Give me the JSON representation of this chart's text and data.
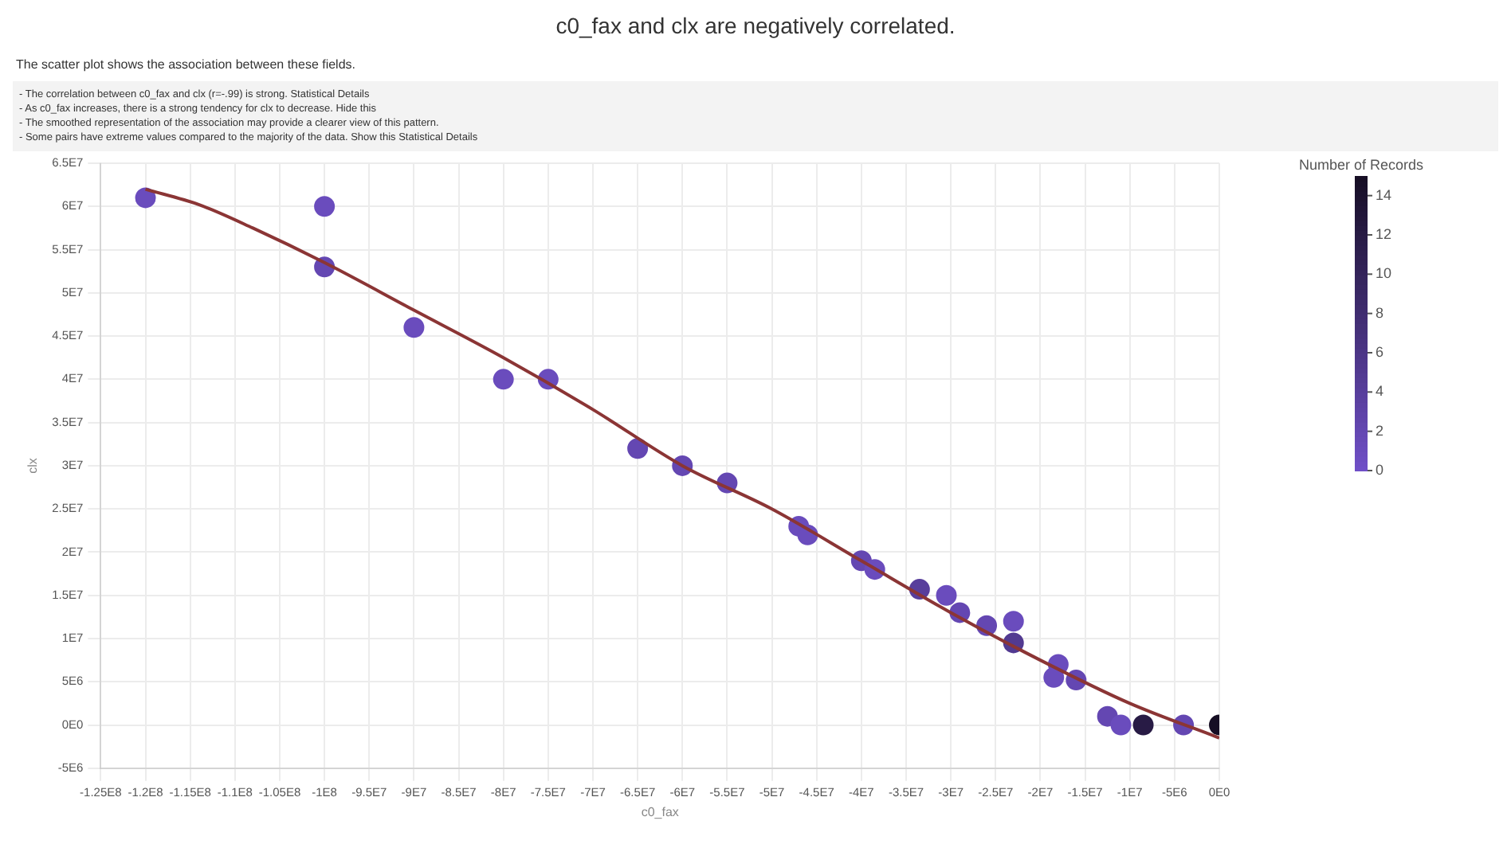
{
  "chart_data": {
    "type": "scatter",
    "title": "c0_fax and clx are negatively correlated.",
    "subtitle": "The scatter plot shows the association between these fields.",
    "annotations": [
      "- The correlation between c0_fax and clx (r=-.99) is strong.   Statistical Details",
      "- As c0_fax increases, there is a strong tendency for clx to decrease.   Hide this",
      "- The smoothed representation of the association may provide a clearer view of this pattern.",
      "- Some pairs have extreme values compared to the majority of the data.   Show this     Statistical Details"
    ],
    "xlabel": "c0_fax",
    "ylabel": "clx",
    "clabel": "Number of Records",
    "series": [
      {
        "marker": "circle",
        "colors": [
          "#6a4cbd",
          "#6a4cbd",
          "#6447b2",
          "#6a4cbd",
          "#6a4cbd",
          "#6a4cbd",
          "#6447b2",
          "#6447b2",
          "#6447b2",
          "#6a4cbd",
          "#6a4cbd",
          "#6447b2",
          "#6a4cbd",
          "#583e9c",
          "#6a4cbd",
          "#6447b2",
          "#6447b2",
          "#6a4cbd",
          "#523a91",
          "#6a4cbd",
          "#6a4cbd",
          "#6447b2",
          "#6447b2",
          "#6a4cbd",
          "#281b45",
          "#6447b2",
          "#160e24"
        ],
        "x": [
          -120000000,
          -100000000,
          -100000000,
          -90000000,
          -80000000,
          -75000000,
          -65000000,
          -60000000,
          -55000000,
          -47000000,
          -46000000,
          -40000000,
          -38500000,
          -33500000,
          -30500000,
          -29000000,
          -26000000,
          -23000000,
          -23000000,
          -18000000,
          -18500000,
          -16000000,
          -12500000,
          -11000000,
          -8500000,
          -4000000,
          0
        ],
        "values": [
          61000000,
          60000000,
          53000000,
          46000000,
          40000000,
          40000000,
          32000000,
          30000000,
          28000000,
          23000000,
          22000000,
          19000000,
          18000000,
          15700000,
          15000000,
          13000000,
          11500000,
          12000000,
          9500000,
          7000000,
          5500000,
          5200000,
          1000000,
          0,
          0,
          0,
          0
        ],
        "cvalues": [
          1,
          1,
          2,
          1,
          1,
          1,
          2,
          2,
          2,
          1,
          1,
          2,
          1,
          4,
          1,
          2,
          2,
          1,
          5,
          1,
          1,
          2,
          2,
          1,
          12,
          2,
          15
        ]
      },
      {
        "type": "line",
        "marker": "none",
        "color": "#8b3535",
        "x": [
          -120000000,
          -114000000,
          -108000000,
          -100000000,
          -90000000,
          -80000000,
          -70000000,
          -60000000,
          -50000000,
          -40000000,
          -30000000,
          -20000000,
          -10000000,
          0
        ],
        "values": [
          62000000,
          60200000,
          57500000,
          53500000,
          48000000,
          42500000,
          36500000,
          30000000,
          25000000,
          19000000,
          13000000,
          7500000,
          2500000,
          -1500000
        ]
      }
    ],
    "xlim": [
      -125000000,
      0
    ],
    "xticks": [
      {
        "value": -125000000,
        "label": "-1.25E8"
      },
      {
        "value": -120000000,
        "label": "-1.2E8"
      },
      {
        "value": -115000000,
        "label": "-1.15E8"
      },
      {
        "value": -110000000,
        "label": "-1.1E8"
      },
      {
        "value": -105000000,
        "label": "-1.05E8"
      },
      {
        "value": -100000000,
        "label": "-1E8"
      },
      {
        "value": -95000000,
        "label": "-9.5E7"
      },
      {
        "value": -90000000,
        "label": "-9E7"
      },
      {
        "value": -85000000,
        "label": "-8.5E7"
      },
      {
        "value": -80000000,
        "label": "-8E7"
      },
      {
        "value": -75000000,
        "label": "-7.5E7"
      },
      {
        "value": -70000000,
        "label": "-7E7"
      },
      {
        "value": -65000000,
        "label": "-6.5E7"
      },
      {
        "value": -60000000,
        "label": "-6E7"
      },
      {
        "value": -55000000,
        "label": "-5.5E7"
      },
      {
        "value": -50000000,
        "label": "-5E7"
      },
      {
        "value": -45000000,
        "label": "-4.5E7"
      },
      {
        "value": -40000000,
        "label": "-4E7"
      },
      {
        "value": -35000000,
        "label": "-3.5E7"
      },
      {
        "value": -30000000,
        "label": "-3E7"
      },
      {
        "value": -25000000,
        "label": "-2.5E7"
      },
      {
        "value": -20000000,
        "label": "-2E7"
      },
      {
        "value": -15000000,
        "label": "-1.5E7"
      },
      {
        "value": -10000000,
        "label": "-1E7"
      },
      {
        "value": -5000000,
        "label": "-5E6"
      },
      {
        "value": 0,
        "label": "0E0"
      }
    ],
    "ylim": [
      -5000000,
      65000000
    ],
    "yticks": [
      {
        "value": -5000000,
        "label": "-5E6"
      },
      {
        "value": 0,
        "label": "0E0"
      },
      {
        "value": 5000000,
        "label": "5E6"
      },
      {
        "value": 10000000,
        "label": "1E7"
      },
      {
        "value": 15000000,
        "label": "1.5E7"
      },
      {
        "value": 20000000,
        "label": "2E7"
      },
      {
        "value": 25000000,
        "label": "2.5E7"
      },
      {
        "value": 30000000,
        "label": "3E7"
      },
      {
        "value": 35000000,
        "label": "3.5E7"
      },
      {
        "value": 40000000,
        "label": "4E7"
      },
      {
        "value": 45000000,
        "label": "4.5E7"
      },
      {
        "value": 50000000,
        "label": "5E7"
      },
      {
        "value": 55000000,
        "label": "5.5E7"
      },
      {
        "value": 60000000,
        "label": "6E7"
      },
      {
        "value": 65000000,
        "label": "6.5E7"
      }
    ],
    "clim": [
      0,
      15
    ],
    "cticks": [
      0,
      2,
      4,
      6,
      8,
      10,
      12,
      14
    ],
    "grid": true,
    "legend": false
  }
}
